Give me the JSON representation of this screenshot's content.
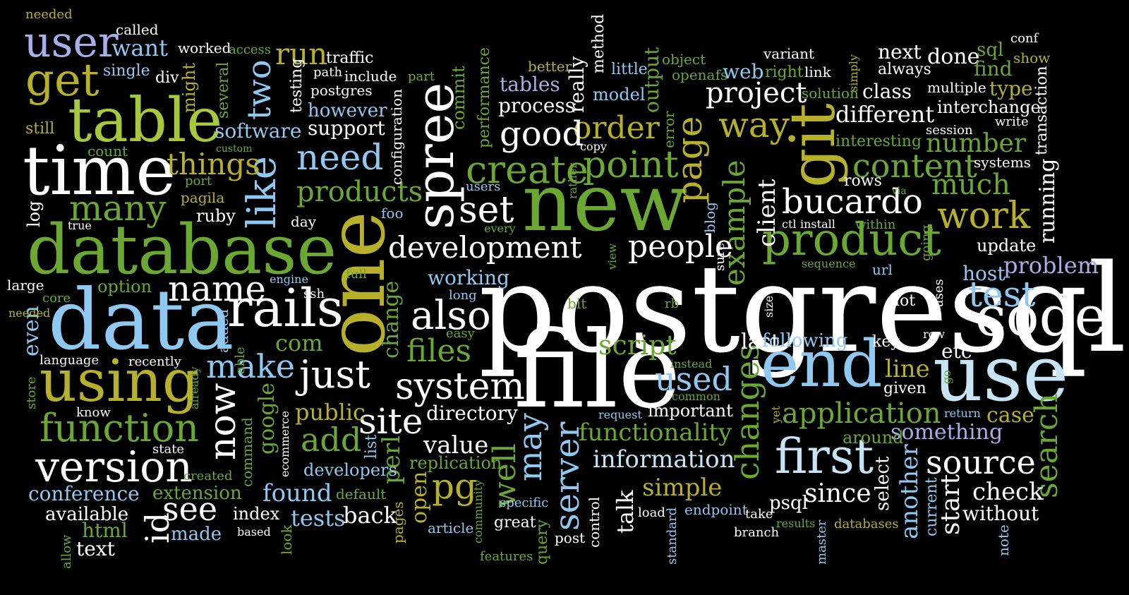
{
  "palette": {
    "white": "#ffffff",
    "blue": "#8fc8f0",
    "lightblue": "#c6e4f5",
    "green": "#6aa832",
    "olive": "#b6b02a",
    "lime": "#a6c83a",
    "lavender": "#a8aee8"
  },
  "words": [
    {
      "text": "postgresql",
      "color": "white"
    },
    {
      "text": "file",
      "color": "white"
    },
    {
      "text": "database",
      "color": "green"
    },
    {
      "text": "data",
      "color": "blue"
    },
    {
      "text": "new",
      "color": "green"
    },
    {
      "text": "one",
      "color": "olive"
    },
    {
      "text": "time",
      "color": "white"
    },
    {
      "text": "table",
      "color": "lime"
    },
    {
      "text": "use",
      "color": "lightblue"
    },
    {
      "text": "end",
      "color": "blue"
    },
    {
      "text": "code",
      "color": "white"
    },
    {
      "text": "git",
      "color": "olive"
    },
    {
      "text": "using",
      "color": "olive"
    },
    {
      "text": "rails",
      "color": "white"
    },
    {
      "text": "spree",
      "color": "white"
    },
    {
      "text": "product",
      "color": "green"
    },
    {
      "text": "first",
      "color": "lightblue"
    },
    {
      "text": "user",
      "color": "lavender"
    },
    {
      "text": "get",
      "color": "olive"
    },
    {
      "text": "version",
      "color": "white"
    },
    {
      "text": "function",
      "color": "green"
    },
    {
      "text": "like",
      "color": "blue"
    },
    {
      "text": "work",
      "color": "olive"
    },
    {
      "text": "create",
      "color": "green"
    },
    {
      "text": "point",
      "color": "green"
    },
    {
      "text": "page",
      "color": "olive"
    },
    {
      "text": "also",
      "color": "white"
    },
    {
      "text": "system",
      "color": "white"
    },
    {
      "text": "just",
      "color": "white"
    },
    {
      "text": "name",
      "color": "white"
    },
    {
      "text": "development",
      "color": "white"
    },
    {
      "text": "bucardo",
      "color": "white"
    },
    {
      "text": "test",
      "color": "blue"
    },
    {
      "text": "application",
      "color": "green"
    },
    {
      "text": "source",
      "color": "white"
    },
    {
      "text": "server",
      "color": "blue"
    },
    {
      "text": "search",
      "color": "green"
    },
    {
      "text": "changes",
      "color": "green"
    },
    {
      "text": "make",
      "color": "blue"
    },
    {
      "text": "need",
      "color": "blue"
    },
    {
      "text": "many",
      "color": "green"
    },
    {
      "text": "set",
      "color": "white"
    },
    {
      "text": "site",
      "color": "white"
    },
    {
      "text": "now",
      "color": "white"
    },
    {
      "text": "order",
      "color": "olive"
    },
    {
      "text": "way",
      "color": "olive"
    },
    {
      "text": "content",
      "color": "green"
    },
    {
      "text": "example",
      "color": "green"
    },
    {
      "text": "good",
      "color": "white"
    },
    {
      "text": "project",
      "color": "white"
    },
    {
      "text": "people",
      "color": "white"
    },
    {
      "text": "products",
      "color": "green"
    },
    {
      "text": "run",
      "color": "olive"
    },
    {
      "text": "two",
      "color": "blue"
    },
    {
      "text": "things",
      "color": "olive"
    },
    {
      "text": "used",
      "color": "blue"
    },
    {
      "text": "add",
      "color": "green"
    },
    {
      "text": "see",
      "color": "white"
    },
    {
      "text": "id",
      "color": "white"
    },
    {
      "text": "pg",
      "color": "olive"
    },
    {
      "text": "may",
      "color": "blue"
    },
    {
      "text": "well",
      "color": "green"
    },
    {
      "text": "files",
      "color": "green"
    },
    {
      "text": "script",
      "color": "green"
    },
    {
      "text": "much",
      "color": "green"
    },
    {
      "text": "number",
      "color": "green"
    },
    {
      "text": "problem",
      "color": "lavender"
    },
    {
      "text": "client",
      "color": "white"
    },
    {
      "text": "functionality",
      "color": "green"
    },
    {
      "text": "information",
      "color": "lightblue"
    },
    {
      "text": "simple",
      "color": "olive"
    },
    {
      "text": "something",
      "color": "lavender"
    },
    {
      "text": "since",
      "color": "white"
    },
    {
      "text": "start",
      "color": "white"
    },
    {
      "text": "check",
      "color": "white"
    },
    {
      "text": "another",
      "color": "blue"
    },
    {
      "text": "different",
      "color": "white"
    },
    {
      "text": "want",
      "color": "blue"
    },
    {
      "text": "process",
      "color": "white"
    },
    {
      "text": "software",
      "color": "blue"
    },
    {
      "text": "support",
      "color": "white"
    },
    {
      "text": "however",
      "color": "blue"
    },
    {
      "text": "conference",
      "color": "blue"
    },
    {
      "text": "extension",
      "color": "green"
    },
    {
      "text": "found",
      "color": "blue"
    },
    {
      "text": "public",
      "color": "olive"
    },
    {
      "text": "google",
      "color": "green"
    },
    {
      "text": "directory",
      "color": "white"
    },
    {
      "text": "value",
      "color": "white"
    },
    {
      "text": "line",
      "color": "olive"
    },
    {
      "text": "case",
      "color": "olive"
    },
    {
      "text": "host",
      "color": "blue"
    },
    {
      "text": "update",
      "color": "white"
    },
    {
      "text": "running",
      "color": "white"
    },
    {
      "text": "com",
      "color": "green"
    },
    {
      "text": "even",
      "color": "blue"
    },
    {
      "text": "html",
      "color": "green"
    },
    {
      "text": "text",
      "color": "white"
    },
    {
      "text": "made",
      "color": "blue"
    },
    {
      "text": "available",
      "color": "white"
    },
    {
      "text": "tests",
      "color": "blue"
    },
    {
      "text": "back",
      "color": "white"
    },
    {
      "text": "index",
      "color": "white"
    },
    {
      "text": "perl",
      "color": "green"
    },
    {
      "text": "developers",
      "color": "blue"
    },
    {
      "text": "replication",
      "color": "green"
    },
    {
      "text": "open",
      "color": "olive"
    },
    {
      "text": "working",
      "color": "blue"
    },
    {
      "text": "change",
      "color": "green"
    },
    {
      "text": "talk",
      "color": "white"
    },
    {
      "text": "last",
      "color": "white"
    },
    {
      "text": "following",
      "color": "blue"
    },
    {
      "text": "etc",
      "color": "white"
    },
    {
      "text": "important",
      "color": "white"
    },
    {
      "text": "select",
      "color": "white"
    },
    {
      "text": "psql",
      "color": "white"
    },
    {
      "text": "without",
      "color": "white"
    },
    {
      "text": "around",
      "color": "green"
    },
    {
      "text": "given",
      "color": "white"
    },
    {
      "text": "key",
      "color": "white"
    },
    {
      "text": "lot",
      "color": "white"
    },
    {
      "text": "rows",
      "color": "white"
    },
    {
      "text": "class",
      "color": "white"
    },
    {
      "text": "next",
      "color": "white"
    },
    {
      "text": "always",
      "color": "white"
    },
    {
      "text": "done",
      "color": "white"
    },
    {
      "text": "sql",
      "color": "green"
    },
    {
      "text": "find",
      "color": "green"
    },
    {
      "text": "type",
      "color": "olive"
    },
    {
      "text": "interchange",
      "color": "white"
    },
    {
      "text": "multiple",
      "color": "white"
    },
    {
      "text": "session",
      "color": "white"
    },
    {
      "text": "write",
      "color": "white"
    },
    {
      "text": "transaction",
      "color": "white"
    },
    {
      "text": "systems",
      "color": "white"
    },
    {
      "text": "show",
      "color": "olive"
    },
    {
      "text": "conf",
      "color": "white"
    },
    {
      "text": "tables",
      "color": "lavender"
    },
    {
      "text": "better",
      "color": "olive"
    },
    {
      "text": "model",
      "color": "blue"
    },
    {
      "text": "really",
      "color": "white"
    },
    {
      "text": "method",
      "color": "white"
    },
    {
      "text": "little",
      "color": "blue"
    },
    {
      "text": "output",
      "color": "green"
    },
    {
      "text": "object",
      "color": "green"
    },
    {
      "text": "openafs",
      "color": "green"
    },
    {
      "text": "web",
      "color": "blue"
    },
    {
      "text": "right",
      "color": "green"
    },
    {
      "text": "link",
      "color": "white"
    },
    {
      "text": "variant",
      "color": "white"
    },
    {
      "text": "solution",
      "color": "green"
    },
    {
      "text": "simply",
      "color": "olive"
    },
    {
      "text": "interesting",
      "color": "green"
    },
    {
      "text": "error",
      "color": "green"
    },
    {
      "text": "commit",
      "color": "green"
    },
    {
      "text": "performance",
      "color": "green"
    },
    {
      "text": "configuration",
      "color": "white"
    },
    {
      "text": "part",
      "color": "green"
    },
    {
      "text": "include",
      "color": "white"
    },
    {
      "text": "traffic",
      "color": "white"
    },
    {
      "text": "path",
      "color": "white"
    },
    {
      "text": "testing",
      "color": "white"
    },
    {
      "text": "postgres",
      "color": "white"
    },
    {
      "text": "single",
      "color": "blue"
    },
    {
      "text": "div",
      "color": "white"
    },
    {
      "text": "called",
      "color": "white"
    },
    {
      "text": "worked",
      "color": "white"
    },
    {
      "text": "access",
      "color": "green"
    },
    {
      "text": "needed",
      "color": "olive"
    },
    {
      "text": "might",
      "color": "olive"
    },
    {
      "text": "several",
      "color": "green"
    },
    {
      "text": "still",
      "color": "olive"
    },
    {
      "text": "count",
      "color": "green"
    },
    {
      "text": "custom",
      "color": "green"
    },
    {
      "text": "port",
      "color": "green"
    },
    {
      "text": "pagila",
      "color": "olive"
    },
    {
      "text": "log",
      "color": "white"
    },
    {
      "text": "ruby",
      "color": "white"
    },
    {
      "text": "true",
      "color": "white"
    },
    {
      "text": "day",
      "color": "white"
    },
    {
      "text": "large",
      "color": "white"
    },
    {
      "text": "option",
      "color": "green"
    },
    {
      "text": "core",
      "color": "green"
    },
    {
      "text": "engine",
      "color": "blue"
    },
    {
      "text": "ssh",
      "color": "white"
    },
    {
      "text": "needed2",
      "color": "olive"
    },
    {
      "text": "language",
      "color": "white"
    },
    {
      "text": "recently",
      "color": "white"
    },
    {
      "text": "able",
      "color": "green"
    },
    {
      "text": "added",
      "color": "blue"
    },
    {
      "text": "store",
      "color": "green"
    },
    {
      "text": "know",
      "color": "white"
    },
    {
      "text": "already",
      "color": "green"
    },
    {
      "text": "state",
      "color": "white"
    },
    {
      "text": "created",
      "color": "green"
    },
    {
      "text": "command",
      "color": "green"
    },
    {
      "text": "ecommerce",
      "color": "white"
    },
    {
      "text": "list",
      "color": "blue"
    },
    {
      "text": "default",
      "color": "green"
    },
    {
      "text": "pages",
      "color": "olive"
    },
    {
      "text": "article",
      "color": "blue"
    },
    {
      "text": "community",
      "color": "green"
    },
    {
      "text": "features",
      "color": "green"
    },
    {
      "text": "query",
      "color": "green"
    },
    {
      "text": "post",
      "color": "white"
    },
    {
      "text": "great",
      "color": "white"
    },
    {
      "text": "specific",
      "color": "blue"
    },
    {
      "text": "control",
      "color": "white"
    },
    {
      "text": "load",
      "color": "white"
    },
    {
      "text": "standard",
      "color": "blue"
    },
    {
      "text": "endpoint",
      "color": "blue"
    },
    {
      "text": "take",
      "color": "white"
    },
    {
      "text": "branch",
      "color": "white"
    },
    {
      "text": "master",
      "color": "blue"
    },
    {
      "text": "results",
      "color": "green"
    },
    {
      "text": "databases",
      "color": "olive"
    },
    {
      "text": "note",
      "color": "blue"
    },
    {
      "text": "current",
      "color": "blue"
    },
    {
      "text": "return",
      "color": "blue"
    },
    {
      "text": "request",
      "color": "blue"
    },
    {
      "text": "yet",
      "color": "olive"
    },
    {
      "text": "common",
      "color": "green"
    },
    {
      "text": "instead",
      "color": "green"
    },
    {
      "text": "look",
      "color": "green"
    },
    {
      "text": "based",
      "color": "white"
    },
    {
      "text": "allow",
      "color": "green"
    },
    {
      "text": "easy",
      "color": "green"
    },
    {
      "text": "long",
      "color": "blue"
    },
    {
      "text": "full",
      "color": "green"
    },
    {
      "text": "bit",
      "color": "green"
    },
    {
      "text": "rb",
      "color": "green"
    },
    {
      "text": "view",
      "color": "green"
    },
    {
      "text": "sure",
      "color": "white"
    },
    {
      "text": "blog",
      "color": "blue"
    },
    {
      "text": "size",
      "color": "white"
    },
    {
      "text": "row",
      "color": "white"
    },
    {
      "text": "go",
      "color": "green"
    },
    {
      "text": "uses",
      "color": "white"
    },
    {
      "text": "url",
      "color": "blue"
    },
    {
      "text": "sequence",
      "color": "green"
    },
    {
      "text": "ctl",
      "color": "white"
    },
    {
      "text": "install",
      "color": "white"
    },
    {
      "text": "within",
      "color": "green"
    },
    {
      "text": "going",
      "color": "green"
    },
    {
      "text": "via",
      "color": "green"
    },
    {
      "text": "every",
      "color": "green"
    },
    {
      "text": "users",
      "color": "blue"
    },
    {
      "text": "foo",
      "color": "blue"
    },
    {
      "text": "copy",
      "color": "white"
    },
    {
      "text": "rather",
      "color": "green"
    }
  ]
}
